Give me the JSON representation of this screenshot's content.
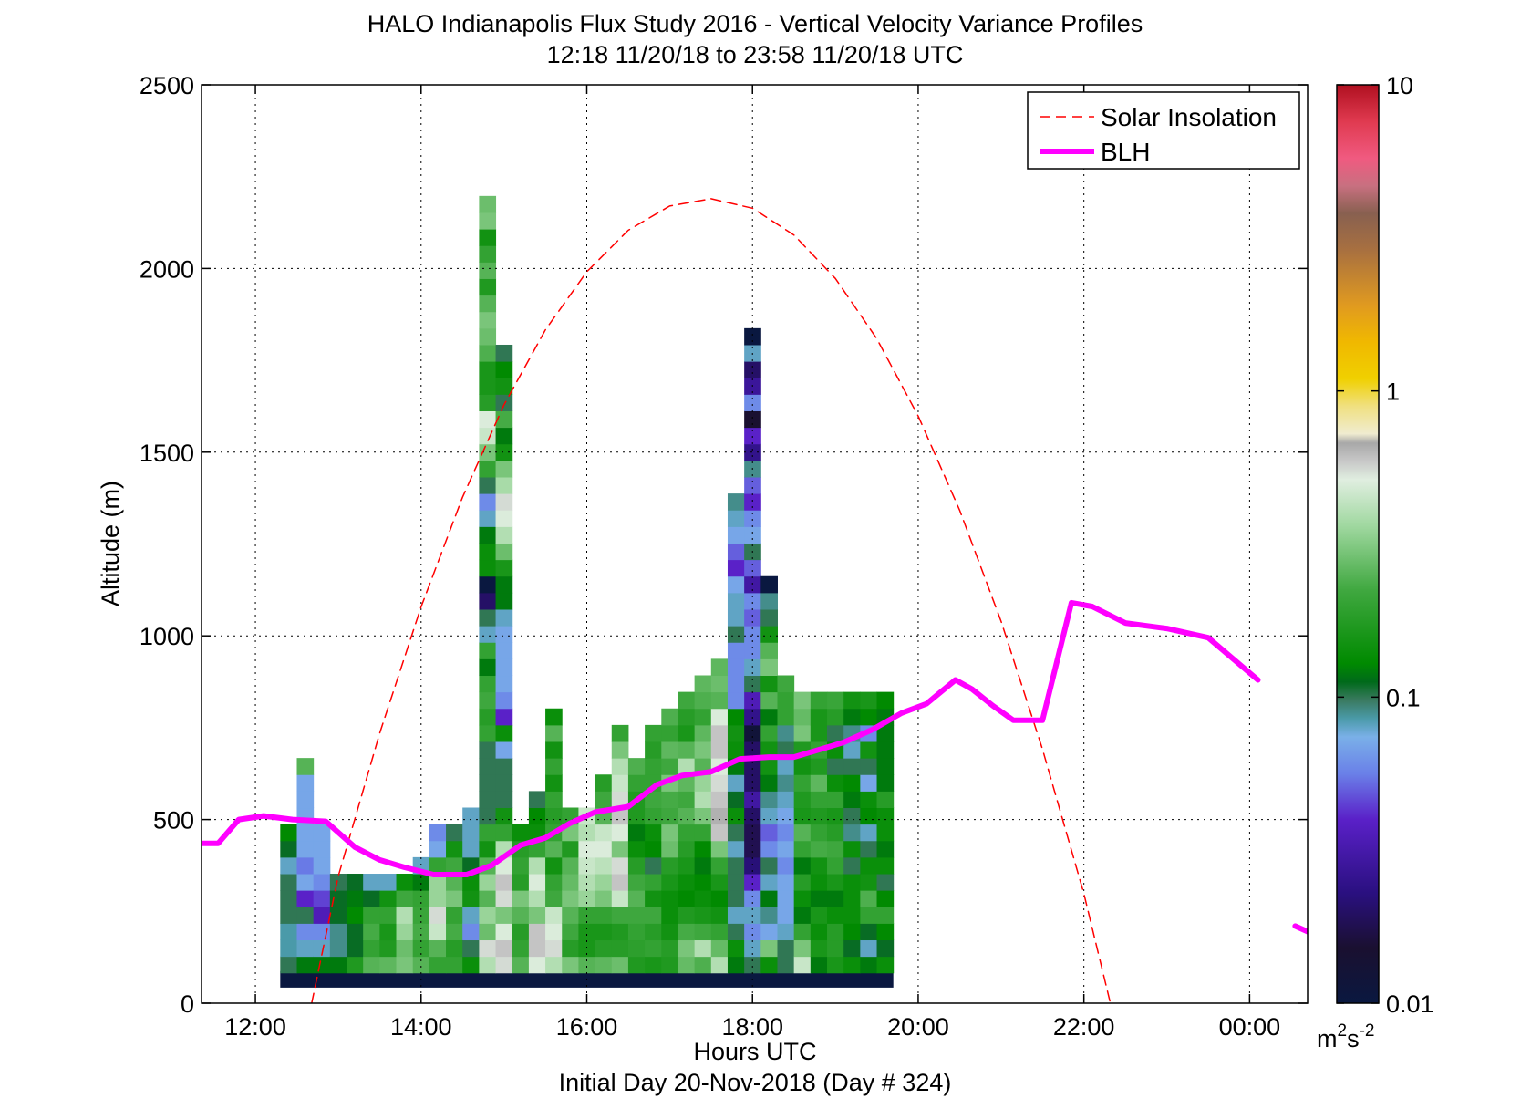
{
  "chart_data": {
    "type": "heatmap",
    "title": "HALO Indianapolis Flux Study 2016 - Vertical Velocity Variance Profiles",
    "subtitle": "12:18 11/20/18 to 23:58 11/20/18  UTC",
    "xlabel": "Hours UTC",
    "xlabel2": "Initial Day 20-Nov-2018 (Day # 324)",
    "ylabel": "Altitude (m)",
    "xlim": [
      11.35,
      24.7
    ],
    "ylim": [
      0,
      2500
    ],
    "x_ticks": [
      12,
      14,
      16,
      18,
      20,
      22,
      24
    ],
    "x_tick_labels": [
      "12:00",
      "14:00",
      "16:00",
      "18:00",
      "20:00",
      "22:00",
      "00:00"
    ],
    "y_ticks": [
      0,
      500,
      1000,
      1500,
      2000,
      2500
    ],
    "y_tick_labels": [
      "0",
      "500",
      "1000",
      "1500",
      "2000",
      "2500"
    ],
    "grid": true,
    "legend_position": "top-right",
    "colorbar": {
      "scale": "log",
      "range": [
        0.01,
        10
      ],
      "tick_values": [
        0.01,
        0.1,
        1,
        10
      ],
      "tick_labels": [
        "0.01",
        "0.1",
        "1",
        "10"
      ],
      "units_base": "m",
      "units_exp1": "2",
      "units_mid": "s",
      "units_exp2": "-2"
    },
    "heatmap": {
      "time_bin_start": 12.3,
      "time_bin_hours": 0.2,
      "altitude_bin_m": 45,
      "first_bin_center_m": 105,
      "lowest_row_altitude_m": 65,
      "lowest_row_value": 0.01,
      "columns": [
        {
          "z": [
            0.1,
            0.085,
            0.085,
            0.1,
            0.1,
            0.1,
            0.08,
            0.11,
            0.13
          ]
        },
        {
          "z": [
            0.12,
            0.08,
            0.06,
            0.1,
            0.04,
            0.07,
            0.055,
            0.07,
            0.07,
            0.07,
            0.07,
            0.07,
            0.25
          ]
        },
        {
          "z": [
            0.12,
            0.08,
            0.06,
            0.035,
            0.045,
            0.06,
            0.07,
            0.07,
            0.07
          ]
        },
        {
          "z": [
            0.12,
            0.09,
            0.09,
            0.11,
            0.11,
            0.1
          ]
        },
        {
          "z": [
            0.17,
            0.11,
            0.11,
            0.13,
            0.12,
            0.11
          ]
        },
        {
          "z": [
            0.25,
            0.2,
            0.23,
            0.2,
            0.11,
            0.08
          ]
        },
        {
          "z": [
            0.26,
            0.17,
            0.16,
            0.2,
            0.15,
            0.08
          ]
        },
        {
          "z": [
            0.3,
            0.28,
            0.35,
            0.4,
            0.22,
            0.14
          ]
        },
        {
          "z": [
            0.25,
            0.2,
            0.23,
            0.21,
            0.2,
            0.12,
            0.08
          ]
        },
        {
          "z": [
            0.2,
            0.25,
            0.45,
            0.55,
            0.35,
            0.35,
            0.2,
            0.07,
            0.06
          ]
        },
        {
          "z": [
            0.2,
            0.18,
            0.23,
            0.2,
            0.3,
            0.25,
            0.22,
            0.15,
            0.1
          ]
        },
        {
          "z": [
            0.14,
            0.1,
            0.06,
            0.08,
            0.15,
            0.14,
            0.11,
            0.08,
            0.08,
            0.08
          ]
        },
        {
          "z": [
            0.4,
            0.55,
            0.28,
            0.35,
            0.25,
            0.35,
            0.25,
            0.15,
            0.2,
            0.1,
            0.1,
            0.1,
            0.1,
            0.1,
            0.2,
            0.18,
            0.22,
            0.2,
            0.12,
            0.2,
            0.08,
            0.1,
            0.02,
            0.01,
            0.14,
            0.14,
            0.12,
            0.08,
            0.06,
            0.1,
            0.2,
            0.3,
            0.45,
            0.5,
            0.18,
            0.16,
            0.16,
            0.24,
            0.28,
            0.3,
            0.25,
            0.17,
            0.25,
            0.2,
            0.15,
            0.3,
            0.28
          ]
        },
        {
          "z": [
            0.55,
            0.6,
            0.5,
            0.3,
            0.55,
            0.6,
            0.5,
            0.4,
            0.2,
            0.15,
            0.1,
            0.1,
            0.1,
            0.07,
            0.14,
            0.04,
            0.06,
            0.07,
            0.07,
            0.07,
            0.07,
            0.08,
            0.12,
            0.12,
            0.16,
            0.28,
            0.4,
            0.5,
            0.55,
            0.38,
            0.3,
            0.15,
            0.12,
            0.23,
            0.1,
            0.15,
            0.13,
            0.1
          ]
        },
        {
          "z": [
            0.25,
            0.2,
            0.18,
            0.25,
            0.3,
            0.18,
            0.2,
            0.18,
            0.14
          ]
        },
        {
          "z": [
            0.5,
            0.6,
            0.6,
            0.3,
            0.4,
            0.5,
            0.4,
            0.2,
            0.14,
            0.13,
            0.1
          ]
        },
        {
          "z": [
            0.4,
            0.55,
            0.5,
            0.45,
            0.22,
            0.2,
            0.15,
            0.25,
            0.2,
            0.18,
            0.2,
            0.15,
            0.2,
            0.15,
            0.25,
            0.14
          ]
        },
        {
          "z": [
            0.3,
            0.18,
            0.22,
            0.25,
            0.3,
            0.27,
            0.25,
            0.17,
            0.3,
            0.2
          ]
        },
        {
          "z": [
            0.25,
            0.16,
            0.16,
            0.2,
            0.35,
            0.4,
            0.45,
            0.5,
            0.4,
            0.45
          ]
        },
        {
          "z": [
            0.26,
            0.18,
            0.16,
            0.2,
            0.3,
            0.35,
            0.42,
            0.5,
            0.45,
            0.25,
            0.22,
            0.18
          ]
        },
        {
          "z": [
            0.28,
            0.18,
            0.17,
            0.22,
            0.45,
            0.6,
            0.55,
            0.3,
            0.5,
            0.6,
            0.55,
            0.45,
            0.4,
            0.3,
            0.2
          ]
        },
        {
          "z": [
            0.17,
            0.19,
            0.2,
            0.22,
            0.25,
            0.22,
            0.18,
            0.14,
            0.12,
            0.17,
            0.17,
            0.2,
            0.24
          ]
        },
        {
          "z": [
            0.16,
            0.2,
            0.18,
            0.22,
            0.15,
            0.2,
            0.1,
            0.13,
            0.14,
            0.2,
            0.22,
            0.2,
            0.2,
            0.18,
            0.2
          ]
        },
        {
          "z": [
            0.17,
            0.18,
            0.15,
            0.14,
            0.14,
            0.16,
            0.18,
            0.28,
            0.3,
            0.22,
            0.23,
            0.3,
            0.22,
            0.26,
            0.2,
            0.24
          ]
        },
        {
          "z": [
            0.27,
            0.3,
            0.23,
            0.17,
            0.13,
            0.14,
            0.16,
            0.18,
            0.2,
            0.25,
            0.22,
            0.26,
            0.4,
            0.25,
            0.16,
            0.18,
            0.22
          ]
        },
        {
          "z": [
            0.24,
            0.4,
            0.22,
            0.16,
            0.14,
            0.13,
            0.12,
            0.13,
            0.2,
            0.3,
            0.4,
            0.35,
            0.25,
            0.3,
            0.26,
            0.2,
            0.24,
            0.26
          ]
        },
        {
          "z": [
            0.4,
            0.27,
            0.2,
            0.15,
            0.13,
            0.16,
            0.2,
            0.3,
            0.6,
            0.65,
            0.6,
            0.55,
            0.5,
            0.6,
            0.6,
            0.5,
            0.25,
            0.28,
            0.26
          ]
        },
        {
          "z": [
            0.12,
            0.14,
            0.1,
            0.08,
            0.1,
            0.1,
            0.1,
            0.08,
            0.1,
            0.14,
            0.11,
            0.08,
            0.12,
            0.14,
            0.15,
            0.13,
            0.06,
            0.06,
            0.06,
            0.06,
            0.1,
            0.08,
            0.08,
            0.07,
            0.04,
            0.05,
            0.07,
            0.08,
            0.09
          ]
        },
        {
          "z": [
            0.1,
            0.08,
            0.06,
            0.08,
            0.06,
            0.04,
            0.022,
            0.018,
            0.018,
            0.02,
            0.03,
            0.02,
            0.02,
            0.02,
            0.012,
            0.025,
            0.035,
            0.1,
            0.08,
            0.06,
            0.06,
            0.05,
            0.06,
            0.03,
            0.05,
            0.1,
            0.07,
            0.06,
            0.04,
            0.05,
            0.09,
            0.025,
            0.04,
            0.015,
            0.06,
            0.028,
            0.02,
            0.08,
            0.01
          ]
        },
        {
          "z": [
            0.14,
            0.3,
            0.07,
            0.09,
            0.12,
            0.08,
            0.1,
            0.06,
            0.05,
            0.08,
            0.09,
            0.12,
            0.15,
            0.15,
            0.2,
            0.12,
            0.25,
            0.15,
            0.3,
            0.25,
            0.15,
            0.1,
            0.09,
            0.01
          ]
        },
        {
          "z": [
            0.1,
            0.1,
            0.08,
            0.07,
            0.07,
            0.07,
            0.06,
            0.07,
            0.06,
            0.07,
            0.08,
            0.09,
            0.08,
            0.1,
            0.09,
            0.2,
            0.2,
            0.22
          ]
        },
        {
          "z": [
            0.45,
            0.3,
            0.2,
            0.12,
            0.14,
            0.18,
            0.12,
            0.2,
            0.25,
            0.16,
            0.17,
            0.2,
            0.15,
            0.17,
            0.3,
            0.27,
            0.3
          ]
        },
        {
          "z": [
            0.12,
            0.16,
            0.14,
            0.16,
            0.12,
            0.14,
            0.15,
            0.23,
            0.2,
            0.17,
            0.2,
            0.26,
            0.17,
            0.2,
            0.16,
            0.16,
            0.2
          ]
        },
        {
          "z": [
            0.16,
            0.18,
            0.18,
            0.14,
            0.12,
            0.16,
            0.2,
            0.22,
            0.18,
            0.16,
            0.2,
            0.14,
            0.1,
            0.14,
            0.1,
            0.18,
            0.21
          ]
        },
        {
          "z": [
            0.14,
            0.11,
            0.13,
            0.14,
            0.14,
            0.14,
            0.1,
            0.14,
            0.09,
            0.1,
            0.12,
            0.13,
            0.1,
            0.08,
            0.09,
            0.12,
            0.15
          ]
        },
        {
          "z": [
            0.12,
            0.08,
            0.11,
            0.2,
            0.24,
            0.15,
            0.14,
            0.1,
            0.08,
            0.13,
            0.14,
            0.07,
            0.1,
            0.15,
            0.06,
            0.13,
            0.16
          ]
        },
        {
          "z": [
            0.14,
            0.11,
            0.13,
            0.2,
            0.13,
            0.1,
            0.14,
            0.12,
            0.14,
            0.14,
            0.18,
            0.12,
            0.12,
            0.12,
            0.12,
            0.12,
            0.13
          ]
        }
      ]
    },
    "series": [
      {
        "name": "Solar Insolation",
        "style": "dashed",
        "color": "#ff0000",
        "x": [
          12.68,
          13.0,
          13.5,
          14.0,
          14.5,
          15.0,
          15.5,
          16.0,
          16.5,
          17.0,
          17.5,
          18.0,
          18.5,
          19.0,
          19.5,
          20.0,
          20.5,
          21.0,
          21.5,
          22.0,
          22.32
        ],
        "y": [
          0,
          345,
          735,
          1079,
          1377,
          1628,
          1833,
          1991,
          2104,
          2170,
          2190,
          2164,
          2091,
          1973,
          1809,
          1598,
          1342,
          1040,
          692,
          298,
          0
        ]
      },
      {
        "name": "BLH",
        "style": "solid",
        "color": "#ff00ff",
        "x": [
          11.35,
          11.55,
          11.8,
          12.1,
          12.45,
          12.85,
          13.2,
          13.5,
          13.8,
          14.15,
          14.55,
          14.85,
          15.2,
          15.5,
          15.8,
          16.1,
          16.5,
          16.85,
          17.15,
          17.5,
          17.85,
          18.2,
          18.5,
          18.8,
          19.1,
          19.45,
          19.8,
          20.1,
          20.45,
          20.65,
          20.9,
          21.15,
          21.5,
          21.85,
          22.1,
          22.5,
          23.0,
          23.5,
          24.1
        ],
        "y": [
          435,
          435,
          500,
          510,
          500,
          495,
          425,
          390,
          370,
          350,
          350,
          375,
          430,
          450,
          490,
          520,
          535,
          595,
          620,
          630,
          665,
          670,
          670,
          690,
          710,
          745,
          790,
          815,
          880,
          855,
          810,
          770,
          770,
          1090,
          1080,
          1035,
          1020,
          995,
          880
        ]
      },
      {
        "name": "BLH",
        "style": "solid",
        "color": "#ff00ff",
        "x": [
          24.55,
          24.8
        ],
        "y": [
          210,
          185
        ]
      }
    ]
  },
  "legend": [
    {
      "label": "Solar Insolation",
      "style": "dashed",
      "color": "#ff0000"
    },
    {
      "label": "BLH",
      "style": "solid",
      "color": "#ff00ff"
    }
  ],
  "colors": {
    "grid": "#000000",
    "no_data_row": "#0a1840",
    "background": "#ffffff"
  }
}
